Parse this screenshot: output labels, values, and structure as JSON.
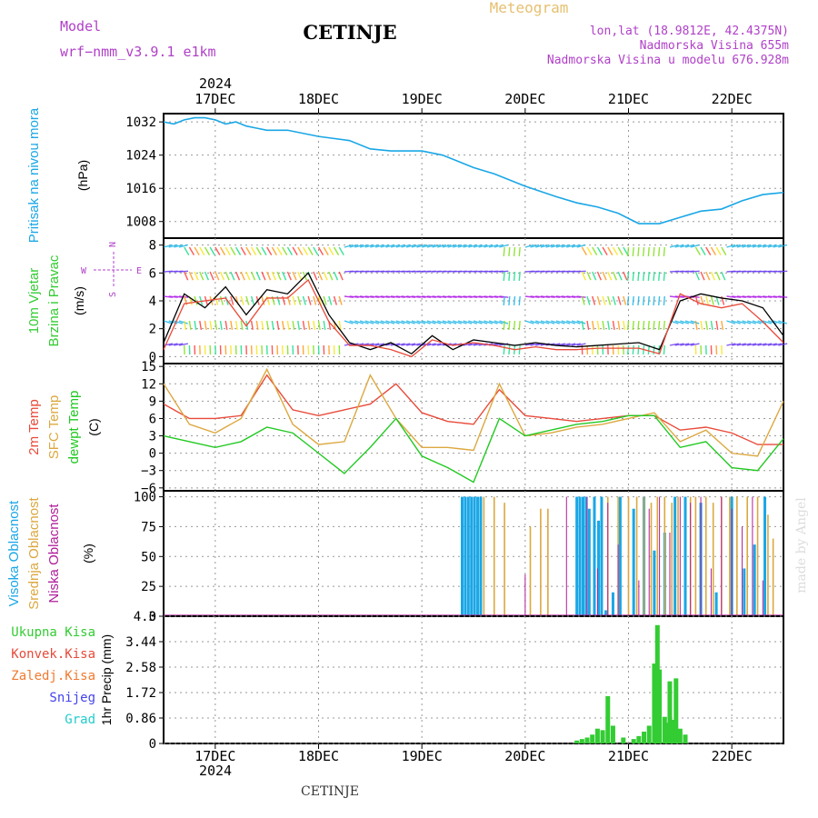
{
  "header": {
    "model_label": "Model",
    "model_name": "wrf−nmm_v3.9.1  e1km",
    "station": "CETINJE",
    "meteogram": "Meteogram",
    "coords": "lon,lat (18.9812E, 42.4375N)",
    "elevation": "Nadmorska Visina 655m",
    "model_elevation": "Nadmorska Visina u modelu 676.928m",
    "year_top": "2024",
    "year_bottom": "2024",
    "footer_station": "CETINJE",
    "credit": "made by Angel"
  },
  "colors": {
    "pressure": "#1aa7e6",
    "t2m": "#e84a3a",
    "sfc": "#dca840",
    "dew": "#22c922",
    "high_cloud": "#1aa7e6",
    "mid_cloud": "#dca840",
    "low_cloud": "#b01e9a",
    "precip": "#33cc33",
    "grid": "#999999"
  },
  "chart_data": [
    {
      "id": "pressure",
      "type": "line",
      "ylabel_lines": [
        "Pritisak na nivou mora",
        "(hPa)"
      ],
      "ylim": [
        1004,
        1034
      ],
      "yticks": [
        "1032",
        "1024",
        "1016",
        "1008"
      ],
      "ytick_values": [
        1032,
        1024,
        1016,
        1008
      ],
      "x_days": [
        0.0,
        0.1,
        0.2,
        0.3,
        0.4,
        0.5,
        0.6,
        0.7,
        0.8,
        0.9,
        1.0,
        1.2,
        1.5,
        1.8,
        2.0,
        2.2,
        2.5,
        2.7,
        3.0,
        3.2,
        3.5,
        3.8,
        4.0,
        4.2,
        4.4,
        4.6,
        4.8,
        5.0,
        5.2,
        5.4,
        5.6,
        5.8,
        6.0
      ],
      "series": [
        {
          "values": [
            1032.0,
            1031.5,
            1032.5,
            1033.0,
            1033.0,
            1032.5,
            1031.5,
            1032.0,
            1031.0,
            1030.5,
            1030.0,
            1030.0,
            1028.5,
            1027.5,
            1025.5,
            1025.0,
            1025.0,
            1024.0,
            1021.0,
            1019.5,
            1016.5,
            1014.0,
            1012.5,
            1011.5,
            1010.0,
            1007.5,
            1007.5,
            1009.0,
            1010.5,
            1011.0,
            1013.0,
            1014.5,
            1015.0
          ]
        }
      ]
    },
    {
      "id": "wind",
      "type": "line",
      "ylabel_lines": [
        "10m Vjetar",
        "Brzina i Pravac",
        "(m/s)"
      ],
      "compass": {
        "w": "W",
        "e": "E",
        "n": "N",
        "s": "S"
      },
      "ylim": [
        -0.5,
        8.5
      ],
      "yticks": [
        "8",
        "6",
        "4",
        "2",
        "0"
      ],
      "ytick_values": [
        8,
        6,
        4,
        2,
        0
      ],
      "x_days": [
        0.0,
        0.2,
        0.4,
        0.6,
        0.8,
        1.0,
        1.2,
        1.4,
        1.6,
        1.8,
        2.0,
        2.2,
        2.4,
        2.6,
        2.8,
        3.0,
        3.2,
        3.4,
        3.6,
        3.8,
        4.0,
        4.2,
        4.4,
        4.6,
        4.8,
        5.0,
        5.2,
        5.4,
        5.6,
        5.8,
        6.0
      ],
      "series": [
        {
          "name": "speed",
          "values": [
            1.0,
            4.5,
            3.5,
            5.0,
            3.0,
            4.8,
            4.5,
            6.0,
            3.0,
            1.0,
            0.5,
            1.0,
            0.2,
            1.5,
            0.5,
            1.2,
            1.0,
            0.8,
            1.0,
            0.8,
            0.7,
            0.8,
            0.9,
            1.0,
            0.5,
            4.0,
            4.5,
            4.2,
            4.0,
            3.5,
            1.5
          ]
        },
        {
          "name": "gust",
          "values": [
            0.5,
            3.8,
            4.0,
            4.2,
            2.2,
            4.2,
            4.2,
            5.5,
            2.5,
            0.8,
            0.8,
            0.5,
            0.0,
            1.2,
            0.8,
            1.0,
            0.8,
            0.5,
            0.7,
            0.5,
            0.5,
            0.6,
            0.6,
            0.6,
            0.2,
            4.5,
            3.8,
            3.5,
            3.8,
            2.5,
            1.0
          ]
        }
      ]
    },
    {
      "id": "temperature",
      "type": "line",
      "ylabel_lines": [
        "2m Temp",
        "SFC Temp",
        "dewpt Temp",
        "(C)"
      ],
      "ylim": [
        -6.5,
        15.5
      ],
      "yticks": [
        "15",
        "12",
        "9",
        "6",
        "3",
        "0",
        "−3",
        "−6"
      ],
      "ytick_values": [
        15,
        12,
        9,
        6,
        3,
        0,
        -3,
        -6
      ],
      "x_days": [
        0.0,
        0.25,
        0.5,
        0.75,
        1.0,
        1.25,
        1.5,
        1.75,
        2.0,
        2.25,
        2.5,
        2.75,
        3.0,
        3.25,
        3.5,
        3.75,
        4.0,
        4.25,
        4.5,
        4.75,
        5.0,
        5.25,
        5.5,
        5.75,
        6.0
      ],
      "series": [
        {
          "name": "2m Temp",
          "values": [
            8.5,
            6.0,
            6.0,
            6.5,
            13.5,
            7.5,
            6.5,
            7.5,
            8.5,
            12.0,
            7.0,
            5.5,
            5.0,
            11.0,
            6.5,
            6.0,
            5.5,
            6.0,
            6.5,
            6.5,
            4.0,
            4.5,
            3.5,
            1.5,
            1.5
          ]
        },
        {
          "name": "SFC Temp",
          "values": [
            12.0,
            5.0,
            3.5,
            6.0,
            14.5,
            5.0,
            1.5,
            2.0,
            13.5,
            6.0,
            1.0,
            1.0,
            0.5,
            12.0,
            3.0,
            3.5,
            4.5,
            5.0,
            6.0,
            7.0,
            2.0,
            4.0,
            0.0,
            -0.5,
            9.0
          ]
        },
        {
          "name": "dewpt Temp",
          "values": [
            3.0,
            2.0,
            1.0,
            2.0,
            4.5,
            3.5,
            0.0,
            -3.5,
            1.0,
            6.0,
            -0.5,
            -2.5,
            -5.0,
            6.0,
            3.0,
            4.0,
            5.0,
            5.5,
            6.5,
            6.5,
            1.0,
            2.0,
            -2.5,
            -3.0,
            2.5
          ]
        }
      ]
    },
    {
      "id": "cloud",
      "type": "bar",
      "ylabel_lines": [
        "Visoka Oblacnost",
        "Srednja Oblacnost",
        "Niska Oblacnost",
        "(%)"
      ],
      "ylim": [
        0,
        105
      ],
      "yticks": [
        "100",
        "75",
        "50",
        "25",
        "0"
      ],
      "ytick_values": [
        100,
        75,
        50,
        25,
        0
      ],
      "high_cloud": {
        "x_days": [
          2.89,
          2.92,
          2.95,
          2.98,
          3.01,
          3.04,
          3.07,
          4.0,
          4.03,
          4.06,
          4.09,
          4.12,
          4.17,
          4.21,
          4.24,
          4.28,
          4.35,
          4.42,
          4.55,
          4.65,
          4.75,
          4.85,
          4.95,
          5.05,
          5.2,
          5.35,
          5.5,
          5.62,
          5.72,
          5.82
        ],
        "values": [
          100,
          100,
          100,
          100,
          100,
          100,
          100,
          100,
          100,
          100,
          100,
          90,
          100,
          80,
          100,
          5,
          20,
          100,
          90,
          100,
          55,
          70,
          100,
          100,
          95,
          20,
          100,
          40,
          60,
          100
        ]
      },
      "mid_cloud": {
        "x_days": [
          3.1,
          3.2,
          3.3,
          3.55,
          3.65,
          3.72,
          4.3,
          4.4,
          4.5,
          4.58,
          4.65,
          4.72,
          4.78,
          4.85,
          4.92,
          4.98,
          5.1,
          5.15,
          5.25,
          5.32,
          5.4,
          5.48,
          5.55,
          5.65,
          5.75,
          5.85,
          5.9
        ],
        "values": [
          100,
          100,
          95,
          75,
          90,
          90,
          100,
          100,
          100,
          100,
          100,
          95,
          100,
          100,
          95,
          100,
          100,
          100,
          100,
          95,
          100,
          100,
          100,
          100,
          100,
          85,
          65
        ]
      },
      "low_cloud": {
        "x_days": [
          3.5,
          3.9,
          4.1,
          4.2,
          4.3,
          4.4,
          4.6,
          4.7,
          4.8,
          4.9,
          5.0,
          5.1,
          5.2,
          5.3,
          5.4,
          5.5,
          5.6,
          5.7,
          5.8
        ],
        "values": [
          35,
          100,
          100,
          40,
          95,
          60,
          30,
          90,
          100,
          70,
          100,
          95,
          100,
          40,
          100,
          90,
          75,
          100,
          30
        ]
      }
    },
    {
      "id": "precip",
      "type": "bar",
      "ylabel_lines": [
        "1hr Precip (mm)"
      ],
      "legend": [
        "Ukupna Kisa",
        "Konvek.Kisa",
        "Zaledj.Kisa",
        "Snijeg",
        "Grad"
      ],
      "legend_colors": [
        "#33cc33",
        "#e84a3a",
        "#f07a30",
        "#4444ee",
        "#22cccc"
      ],
      "ylim": [
        0,
        4.3
      ],
      "yticks": [
        "4.3",
        "3.44",
        "2.58",
        "1.72",
        "0.86",
        "0"
      ],
      "ytick_values": [
        4.3,
        3.44,
        2.58,
        1.72,
        0.86,
        0
      ],
      "x_days": [
        4.0,
        4.05,
        4.1,
        4.15,
        4.2,
        4.25,
        4.3,
        4.35,
        4.45,
        4.55,
        4.6,
        4.65,
        4.7,
        4.75,
        4.78,
        4.8,
        4.85,
        4.88,
        4.9,
        4.93,
        4.96,
        5.0,
        5.05
      ],
      "values": [
        0.1,
        0.15,
        0.2,
        0.3,
        0.5,
        0.45,
        1.6,
        0.6,
        0.2,
        0.15,
        0.25,
        0.4,
        0.6,
        2.7,
        4.0,
        2.5,
        0.9,
        0.7,
        2.1,
        0.8,
        2.2,
        0.5,
        0.3
      ]
    }
  ],
  "x_axis": {
    "day_labels": [
      "17DEC",
      "18DEC",
      "19DEC",
      "20DEC",
      "21DEC",
      "22DEC"
    ],
    "day_positions": [
      0.5,
      1.5,
      2.5,
      3.5,
      4.5,
      5.5
    ],
    "x_range_days": [
      0.0,
      6.0
    ]
  }
}
